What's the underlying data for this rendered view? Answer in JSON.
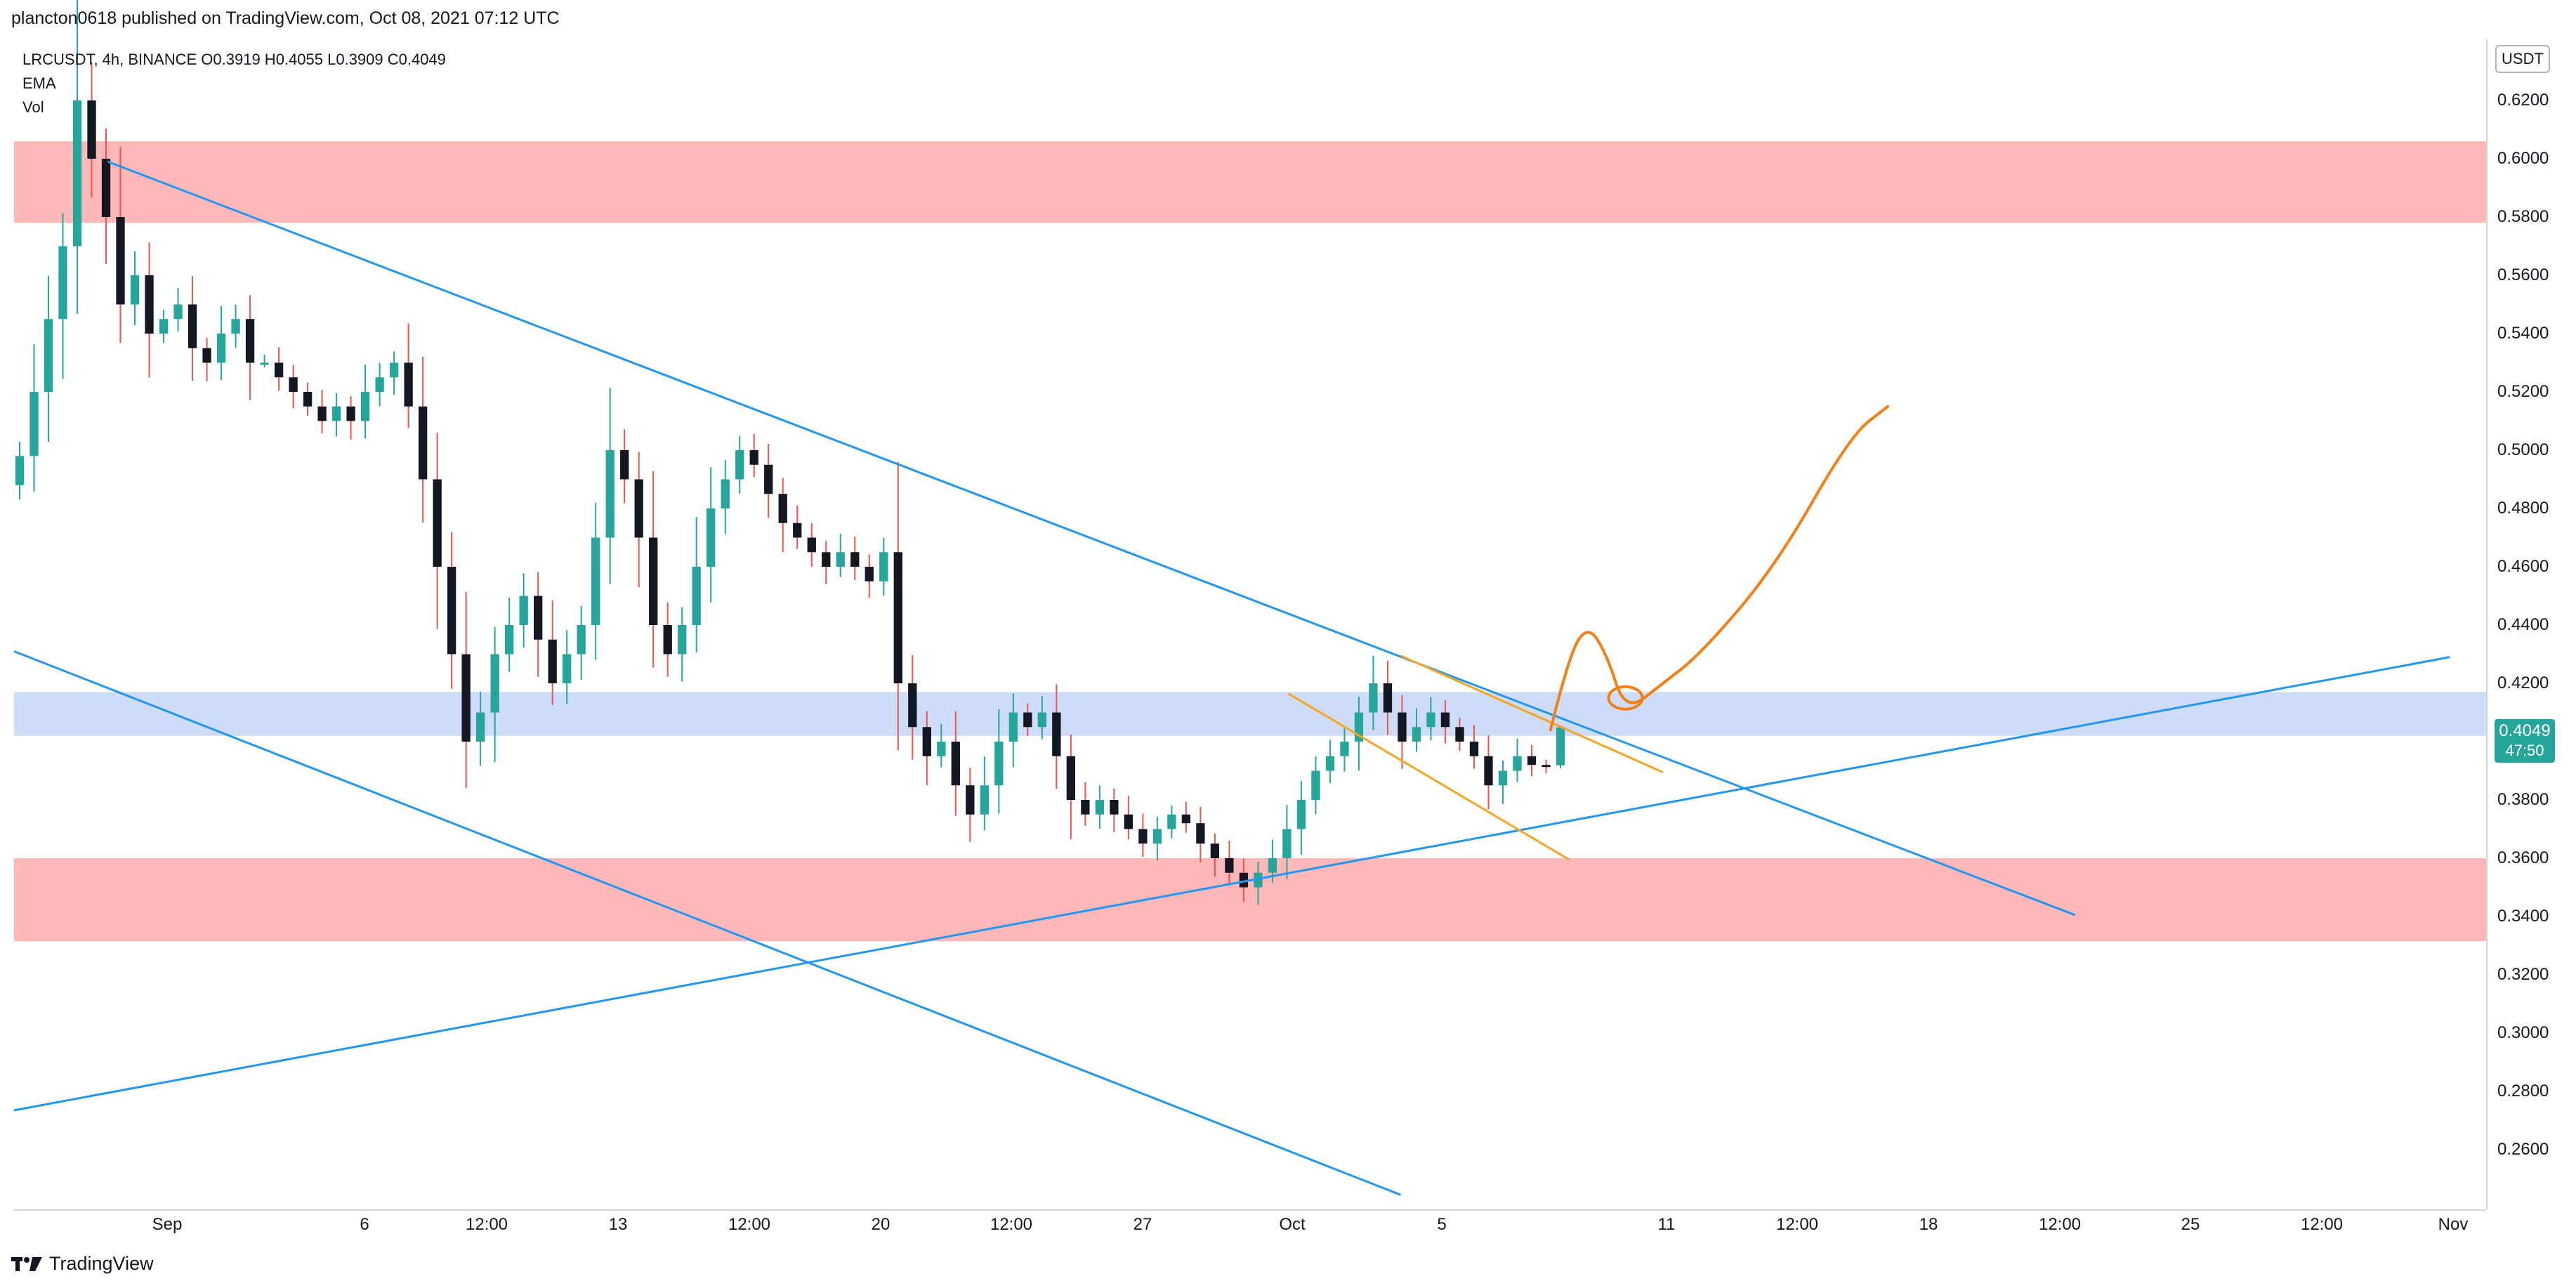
{
  "header": {
    "published": "plancton0618 published on TradingView.com, Oct 08, 2021 07:12 UTC"
  },
  "legend": {
    "symbol_line": "LRCUSDT, 4h, BINANCE  O0.3919  H0.4055  L0.3909  C0.4049",
    "indicators": [
      "EMA",
      "Vol"
    ]
  },
  "price_axis": {
    "currency": "USDT",
    "labels": [
      "0.6200",
      "0.6000",
      "0.5800",
      "0.5600",
      "0.5400",
      "0.5200",
      "0.5000",
      "0.4800",
      "0.4600",
      "0.4400",
      "0.4200",
      "0.3800",
      "0.3600",
      "0.3400",
      "0.3200",
      "0.3000",
      "0.2800",
      "0.2600"
    ],
    "last_price": "0.4049",
    "countdown": "47:50"
  },
  "time_axis": {
    "labels": [
      "Sep",
      "6",
      "12:00",
      "13",
      "12:00",
      "20",
      "12:00",
      "27",
      "Oct",
      "5",
      "11",
      "12:00",
      "18",
      "12:00",
      "25",
      "12:00",
      "Nov"
    ]
  },
  "brand": {
    "name": "TradingView"
  },
  "colors": {
    "up": "#26a69a",
    "down": "#ef5350",
    "candle_body_down": "#131722",
    "resistance_zone": "#ffb8b8",
    "support_zone": "#cddcf8",
    "trend_line": "#2196f3",
    "flag_line": "#f5a623",
    "projection": "#f57f17",
    "last_price_bg": "#26a69a"
  },
  "chart_data": {
    "type": "candlestick",
    "symbol": "LRCUSDT",
    "interval": "4h",
    "exchange": "BINANCE",
    "ohlc_last": {
      "open": 0.3919,
      "high": 0.4055,
      "low": 0.3909,
      "close": 0.4049
    },
    "ylim": [
      0.25,
      0.64
    ],
    "xlim": [
      "2021-08-28",
      "2021-11-01"
    ],
    "x_ticks": [
      "Sep",
      "6",
      "12:00",
      "13",
      "12:00",
      "20",
      "12:00",
      "27",
      "Oct",
      "5",
      "11",
      "12:00",
      "18",
      "12:00",
      "25",
      "12:00",
      "Nov"
    ],
    "y_ticks": [
      0.62,
      0.6,
      0.58,
      0.56,
      0.54,
      0.52,
      0.5,
      0.48,
      0.46,
      0.44,
      0.42,
      0.38,
      0.36,
      0.34,
      0.32,
      0.3,
      0.28,
      0.26
    ],
    "closes_approx": [
      0.498,
      0.52,
      0.545,
      0.57,
      0.62,
      0.6,
      0.58,
      0.55,
      0.56,
      0.54,
      0.545,
      0.55,
      0.535,
      0.53,
      0.54,
      0.545,
      0.53,
      0.53,
      0.525,
      0.52,
      0.515,
      0.51,
      0.515,
      0.51,
      0.52,
      0.525,
      0.53,
      0.515,
      0.49,
      0.46,
      0.43,
      0.4,
      0.41,
      0.43,
      0.44,
      0.45,
      0.435,
      0.42,
      0.43,
      0.44,
      0.47,
      0.5,
      0.49,
      0.47,
      0.44,
      0.43,
      0.44,
      0.46,
      0.48,
      0.49,
      0.5,
      0.495,
      0.485,
      0.475,
      0.47,
      0.465,
      0.46,
      0.465,
      0.46,
      0.455,
      0.465,
      0.42,
      0.405,
      0.395,
      0.4,
      0.385,
      0.375,
      0.385,
      0.4,
      0.41,
      0.405,
      0.41,
      0.395,
      0.38,
      0.375,
      0.38,
      0.375,
      0.37,
      0.365,
      0.37,
      0.375,
      0.372,
      0.365,
      0.36,
      0.355,
      0.35,
      0.355,
      0.36,
      0.37,
      0.38,
      0.39,
      0.395,
      0.4,
      0.41,
      0.42,
      0.41,
      0.4,
      0.405,
      0.41,
      0.405,
      0.4,
      0.395,
      0.385,
      0.39,
      0.395,
      0.392,
      0.3919,
      0.4049
    ],
    "zones": [
      {
        "kind": "resistance",
        "y1": 0.578,
        "y2": 0.606
      },
      {
        "kind": "support",
        "y1": 0.402,
        "y2": 0.417
      },
      {
        "kind": "resistance",
        "y1": 0.3315,
        "y2": 0.36
      }
    ],
    "trendlines": [
      {
        "kind": "descending",
        "from": [
          "2021-08-30 12:00",
          0.599
        ],
        "to": [
          "2021-10-22",
          0.3405
        ]
      },
      {
        "kind": "descending-lower",
        "from": [
          "2021-08-28",
          0.431
        ],
        "to": [
          "2021-10-04",
          0.2445
        ]
      },
      {
        "kind": "ascending",
        "from": [
          "2021-08-28",
          0.2735
        ],
        "to": [
          "2021-11-01",
          0.429
        ]
      },
      {
        "kind": "flag-upper",
        "from": [
          "2021-10-04",
          0.4295
        ],
        "to": [
          "2021-10-11",
          0.3895
        ]
      },
      {
        "kind": "flag-lower",
        "from": [
          "2021-10-01",
          0.4165
        ],
        "to": [
          "2021-10-08 12:00",
          0.3595
        ]
      }
    ],
    "projection": [
      [
        "2021-10-08 00:00",
        0.404
      ],
      [
        "2021-10-08 12:00",
        0.43
      ],
      [
        "2021-10-09 00:00",
        0.44
      ],
      [
        "2021-10-09 12:00",
        0.43
      ],
      [
        "2021-10-10 00:00",
        0.41
      ],
      [
        "2021-10-11 00:00",
        0.42
      ],
      [
        "2021-10-12 00:00",
        0.43
      ],
      [
        "2021-10-14 00:00",
        0.46
      ],
      [
        "2021-10-16 00:00",
        0.505
      ],
      [
        "2021-10-17 00:00",
        0.515
      ]
    ]
  }
}
